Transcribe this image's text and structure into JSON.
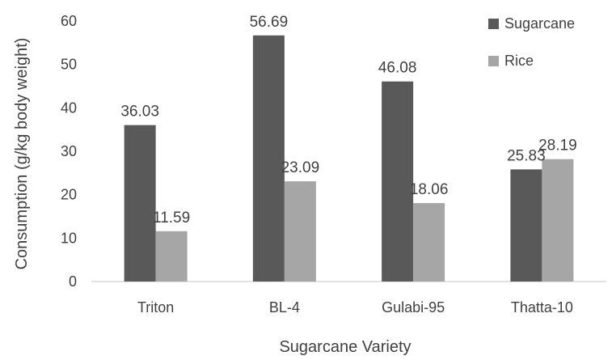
{
  "chart_data": {
    "type": "bar",
    "title": "",
    "xlabel": "Sugarcane Variety",
    "ylabel": "Consumption (g/kg body weight)",
    "categories": [
      "Triton",
      "BL-4",
      "Gulabi-95",
      "Thatta-10"
    ],
    "series": [
      {
        "name": "Sugarcane",
        "color": "#595959",
        "values": [
          36.03,
          56.69,
          46.08,
          25.83
        ]
      },
      {
        "name": "Rice",
        "color": "#a6a6a6",
        "values": [
          11.59,
          23.09,
          18.06,
          28.19
        ]
      }
    ],
    "ylim": [
      0,
      60
    ],
    "yticks": [
      0,
      10,
      20,
      30,
      40,
      50,
      60
    ],
    "grid": false,
    "legend_position": "top-right"
  }
}
